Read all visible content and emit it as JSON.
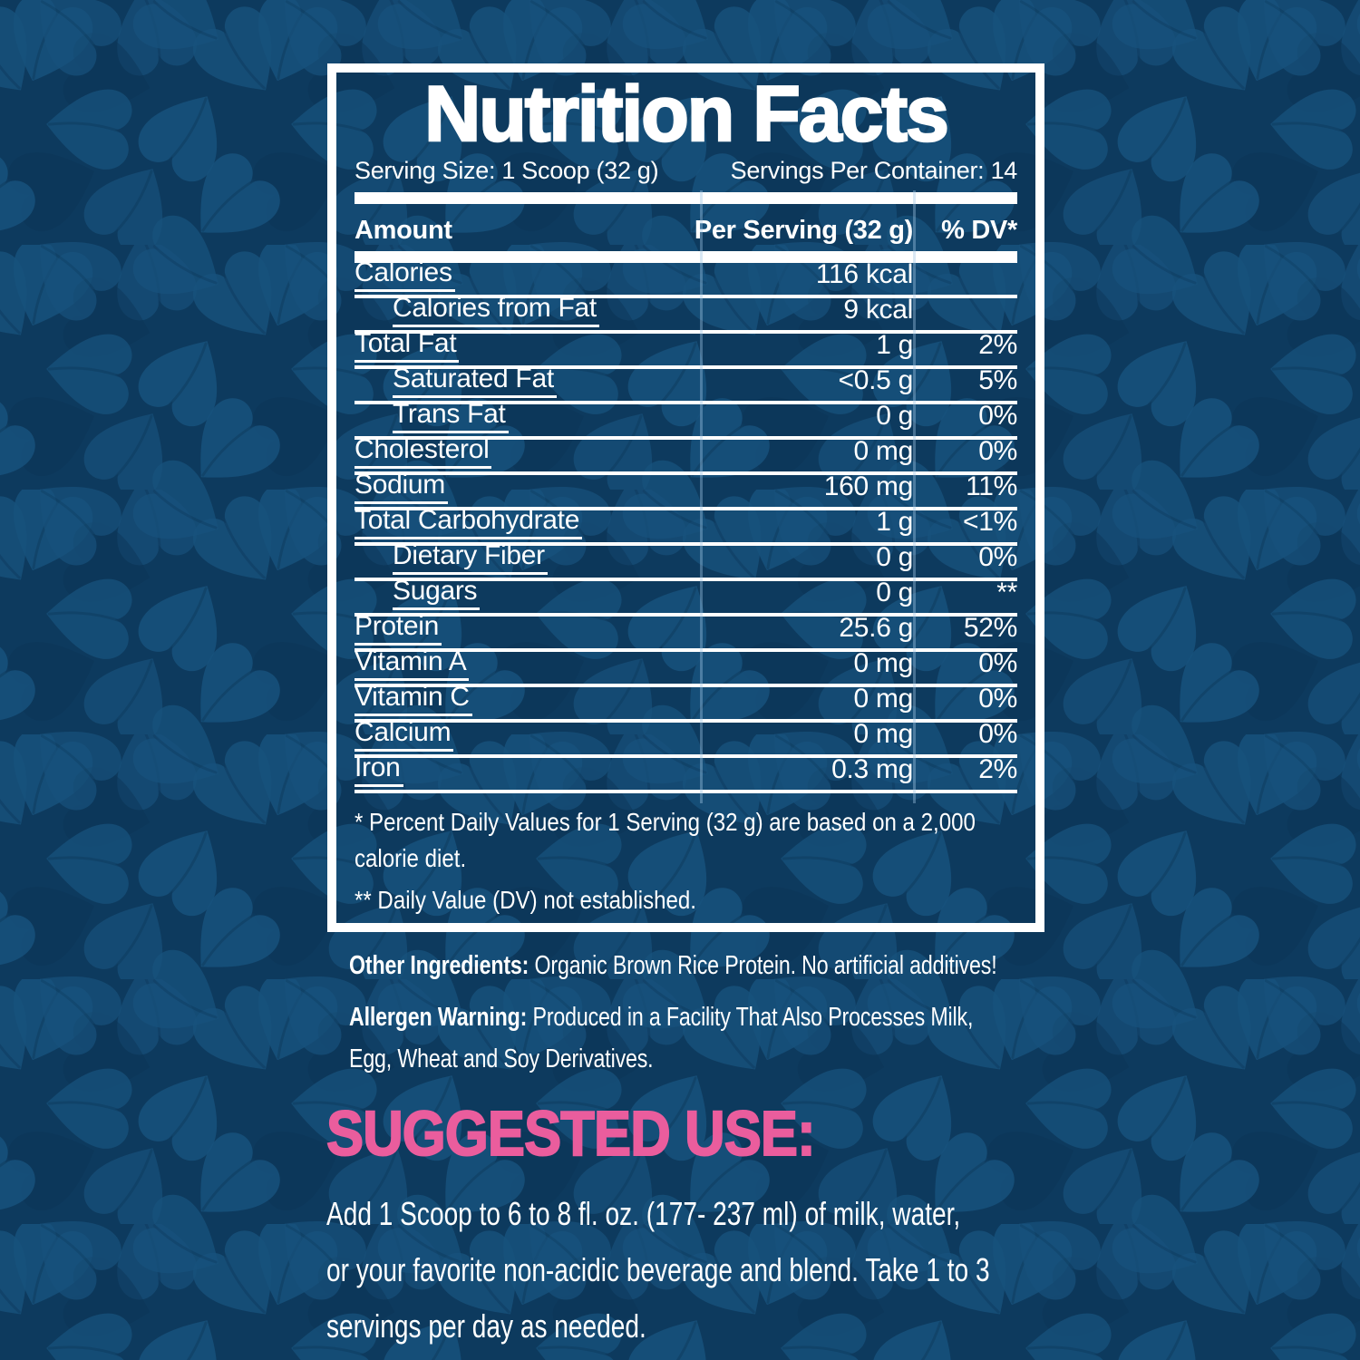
{
  "colors": {
    "background_navy": "#0d3a5e",
    "leaf_light": "#16517c",
    "leaf_dark": "#0b3355",
    "text_white": "#ffffff",
    "accent_pink": "#ea5d9d"
  },
  "panel": {
    "title": "Nutrition Facts",
    "serving_size": "Serving Size: 1 Scoop (32 g)",
    "servings_per_container": "Servings Per Container: 14",
    "columns": {
      "amount": "Amount",
      "per_serving": "Per Serving (32 g)",
      "daily_value": "% DV*"
    },
    "rows": [
      {
        "name": "Calories",
        "amount": "116 kcal",
        "dv": "",
        "indent": false
      },
      {
        "name": "Calories from Fat",
        "amount": "9 kcal",
        "dv": "",
        "indent": true
      },
      {
        "name": "Total Fat",
        "amount": "1 g",
        "dv": "2%",
        "indent": false
      },
      {
        "name": "Saturated Fat",
        "amount": "<0.5 g",
        "dv": "5%",
        "indent": true
      },
      {
        "name": "Trans Fat",
        "amount": "0 g",
        "dv": "0%",
        "indent": true
      },
      {
        "name": "Cholesterol",
        "amount": "0 mg",
        "dv": "0%",
        "indent": false
      },
      {
        "name": "Sodium",
        "amount": "160 mg",
        "dv": "11%",
        "indent": false
      },
      {
        "name": "Total Carbohydrate",
        "amount": "1 g",
        "dv": "<1%",
        "indent": false
      },
      {
        "name": "Dietary Fiber",
        "amount": "0 g",
        "dv": "0%",
        "indent": true
      },
      {
        "name": "Sugars",
        "amount": "0 g",
        "dv": "**",
        "indent": true
      },
      {
        "name": "Protein",
        "amount": "25.6 g",
        "dv": "52%",
        "indent": false
      },
      {
        "name": "Vitamin A",
        "amount": "0 mg",
        "dv": "0%",
        "indent": false
      },
      {
        "name": "Vitamin C",
        "amount": "0 mg",
        "dv": "0%",
        "indent": false
      },
      {
        "name": "Calcium",
        "amount": "0 mg",
        "dv": "0%",
        "indent": false
      },
      {
        "name": "Iron",
        "amount": "0.3 mg",
        "dv": "2%",
        "indent": false
      }
    ],
    "footnote_lines": [
      "* Percent Daily Values for 1 Serving (32 g) are based on a 2,000",
      "calorie diet.",
      "** Daily Value (DV) not established."
    ]
  },
  "other_ingredients": {
    "label": "Other Ingredients:",
    "text": "Organic Brown Rice Protein. No artificial additives!"
  },
  "allergen_warning": {
    "label": "Allergen Warning:",
    "lines": [
      "Produced in a Facility That Also Processes Milk,",
      "Egg, Wheat and Soy Derivatives."
    ]
  },
  "suggested_use": {
    "heading": "SUGGESTED USE:",
    "lines": [
      "Add 1 Scoop to 6 to 8 fl. oz. (177- 237 ml) of milk, water,",
      "or your favorite non-acidic beverage and blend. Take 1 to 3",
      "servings per day as needed."
    ]
  }
}
